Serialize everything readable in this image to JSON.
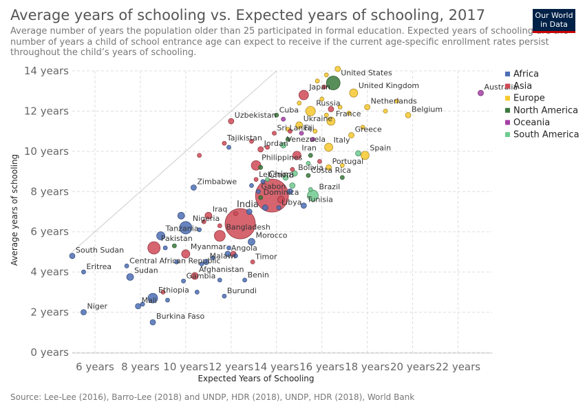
{
  "header": {
    "title": "Average years of schooling vs. Expected years of schooling, 2017",
    "subtitle": "Average number of years the population older than 25 participated in formal education. Expected years of schooling are the number of years a child of school entrance age can expect to receive if the current age-specific enrollment rates persist throughout the child’s years of schooling.",
    "logo_line1": "Our World",
    "logo_line2": "in Data"
  },
  "footer": {
    "source": "Source: Lee-Lee (2016), Barro-Lee (2018) and UNDP, HDR (2018), UNDP, HDR (2018), World Bank"
  },
  "colors": {
    "Africa": "#4c6fb5",
    "Asia": "#cf4a57",
    "Europe": "#f7c82e",
    "North America": "#3b7a3c",
    "Oceania": "#a53fa5",
    "South America": "#6fca8e"
  },
  "chart_data": {
    "type": "scatter",
    "title": "Average years of schooling vs. Expected years of schooling, 2017",
    "xlabel": "Expected Years of Schooling",
    "ylabel": "Average years of schooling",
    "xlim": [
      5,
      23.5
    ],
    "ylim": [
      0,
      14
    ],
    "xticks": [
      6,
      8,
      10,
      12,
      14,
      16,
      18,
      20,
      22
    ],
    "yticks": [
      0,
      2,
      4,
      6,
      8,
      10,
      12,
      14
    ],
    "xtick_labels": [
      "6 years",
      "8 years",
      "10 years",
      "12 years",
      "14 years",
      "16 years",
      "18 years",
      "20 years",
      "22 years"
    ],
    "ytick_labels": [
      "0 years",
      "2 years",
      "4 years",
      "6 years",
      "8 years",
      "10 years",
      "12 years",
      "14 years"
    ],
    "grid": true,
    "legend_position": "right",
    "legend": [
      "Africa",
      "Asia",
      "Europe",
      "North America",
      "Oceania",
      "South America"
    ],
    "reference_line": [
      [
        5,
        5
      ],
      [
        14,
        14
      ]
    ],
    "points": [
      {
        "name": "South Sudan",
        "x": 5.0,
        "y": 4.8,
        "region": "Africa",
        "size": 4
      },
      {
        "name": "Eritrea",
        "x": 5.5,
        "y": 4.0,
        "region": "Africa",
        "size": 3
      },
      {
        "name": "Niger",
        "x": 5.5,
        "y": 2.0,
        "region": "Africa",
        "size": 4
      },
      {
        "name": "Sudan",
        "x": 7.55,
        "y": 3.75,
        "region": "Africa",
        "size": 5
      },
      {
        "name": "Central African Republic",
        "x": 7.4,
        "y": 4.3,
        "region": "Africa",
        "size": 3
      },
      {
        "name": "Mali",
        "x": 7.9,
        "y": 2.3,
        "region": "Africa",
        "size": 4
      },
      {
        "name": "Burkina Faso",
        "x": 8.55,
        "y": 1.5,
        "region": "Africa",
        "size": 4
      },
      {
        "name": "Ethiopia",
        "x": 8.55,
        "y": 2.7,
        "region": "Africa",
        "size": 7
      },
      {
        "name": "Pakistan",
        "x": 8.6,
        "y": 5.2,
        "region": "Asia",
        "size": 9
      },
      {
        "name": "Tanzania",
        "x": 8.9,
        "y": 5.8,
        "region": "Africa",
        "size": 6
      },
      {
        "name": "Gambia",
        "x": 9.9,
        "y": 3.55,
        "region": "Africa",
        "size": 3
      },
      {
        "name": "Nigeria",
        "x": 10.0,
        "y": 6.2,
        "region": "Africa",
        "size": 9
      },
      {
        "name": "Zimbabwe",
        "x": 10.35,
        "y": 8.2,
        "region": "Africa",
        "size": 4
      },
      {
        "name": "Myanmar",
        "x": 10.0,
        "y": 4.9,
        "region": "Asia",
        "size": 6
      },
      {
        "name": "Afghanistan",
        "x": 10.4,
        "y": 3.8,
        "region": "Asia",
        "size": 5
      },
      {
        "name": "Malawi",
        "x": 10.9,
        "y": 4.5,
        "region": "Africa",
        "size": 4
      },
      {
        "name": "Iraq",
        "x": 11.0,
        "y": 6.8,
        "region": "Asia",
        "size": 5
      },
      {
        "name": "Bangladesh",
        "x": 11.5,
        "y": 5.8,
        "region": "Asia",
        "size": 8
      },
      {
        "name": "Burundi",
        "x": 11.7,
        "y": 2.8,
        "region": "Africa",
        "size": 3
      },
      {
        "name": "Angola",
        "x": 11.85,
        "y": 4.9,
        "region": "Africa",
        "size": 4
      },
      {
        "name": "Uzbekistan",
        "x": 12.0,
        "y": 11.5,
        "region": "Asia",
        "size": 4
      },
      {
        "name": "Tajikistan",
        "x": 11.7,
        "y": 10.4,
        "region": "Asia",
        "size": 3
      },
      {
        "name": "Philippines",
        "x": 13.1,
        "y": 9.3,
        "region": "Asia",
        "size": 7
      },
      {
        "name": "India",
        "x": 12.4,
        "y": 6.4,
        "region": "Asia",
        "size": 22
      },
      {
        "name": "Morocco",
        "x": 12.9,
        "y": 5.5,
        "region": "Africa",
        "size": 5
      },
      {
        "name": "Timor",
        "x": 12.95,
        "y": 4.5,
        "region": "Asia",
        "size": 3
      },
      {
        "name": "Benin",
        "x": 12.6,
        "y": 3.6,
        "region": "Africa",
        "size": 3
      },
      {
        "name": "Lebanon",
        "x": 13.1,
        "y": 8.6,
        "region": "Asia",
        "size": 3
      },
      {
        "name": "Gabon",
        "x": 13.2,
        "y": 8.0,
        "region": "Africa",
        "size": 3
      },
      {
        "name": "Dominica",
        "x": 13.3,
        "y": 7.7,
        "region": "North America",
        "size": 3
      },
      {
        "name": "China",
        "x": 13.8,
        "y": 7.8,
        "region": "Asia",
        "size": 24
      },
      {
        "name": "Libya",
        "x": 14.1,
        "y": 7.2,
        "region": "Africa",
        "size": 3
      },
      {
        "name": "Jordan",
        "x": 13.3,
        "y": 10.1,
        "region": "Asia",
        "size": 4
      },
      {
        "name": "Cuba",
        "x": 14.0,
        "y": 11.8,
        "region": "North America",
        "size": 3
      },
      {
        "name": "Sri Lanka",
        "x": 13.9,
        "y": 10.9,
        "region": "Asia",
        "size": 3
      },
      {
        "name": "Venezuela",
        "x": 14.3,
        "y": 10.3,
        "region": "South America",
        "size": 4
      },
      {
        "name": "Iran",
        "x": 14.9,
        "y": 9.8,
        "region": "Asia",
        "size": 6
      },
      {
        "name": "Bolivia",
        "x": 14.8,
        "y": 8.9,
        "region": "South America",
        "size": 4
      },
      {
        "name": "Tunisia",
        "x": 15.2,
        "y": 7.3,
        "region": "Africa",
        "size": 4
      },
      {
        "name": "Brazil",
        "x": 15.6,
        "y": 7.8,
        "region": "South America",
        "size": 8
      },
      {
        "name": "Costa Rica",
        "x": 15.4,
        "y": 8.8,
        "region": "North America",
        "size": 3
      },
      {
        "name": "Fiji",
        "x": 15.1,
        "y": 10.9,
        "region": "Oceania",
        "size": 3
      },
      {
        "name": "Ukraine",
        "x": 15.0,
        "y": 11.3,
        "region": "Europe",
        "size": 5
      },
      {
        "name": "Russia",
        "x": 15.5,
        "y": 12.0,
        "region": "Europe",
        "size": 7
      },
      {
        "name": "Japan",
        "x": 15.2,
        "y": 12.8,
        "region": "Asia",
        "size": 7
      },
      {
        "name": "United States",
        "x": 16.5,
        "y": 13.4,
        "region": "North America",
        "size": 10
      },
      {
        "name": "United Kingdom",
        "x": 17.4,
        "y": 12.9,
        "region": "Europe",
        "size": 6
      },
      {
        "name": "France",
        "x": 16.4,
        "y": 11.5,
        "region": "Europe",
        "size": 6
      },
      {
        "name": "Netherlands",
        "x": 18.0,
        "y": 12.2,
        "region": "Europe",
        "size": 4
      },
      {
        "name": "Belgium",
        "x": 19.8,
        "y": 11.8,
        "region": "Europe",
        "size": 4
      },
      {
        "name": "Greece",
        "x": 17.3,
        "y": 10.8,
        "region": "Europe",
        "size": 4
      },
      {
        "name": "Italy",
        "x": 16.3,
        "y": 10.2,
        "region": "Europe",
        "size": 6
      },
      {
        "name": "Spain",
        "x": 17.9,
        "y": 9.8,
        "region": "Europe",
        "size": 6
      },
      {
        "name": "Portugal",
        "x": 16.3,
        "y": 9.2,
        "region": "Europe",
        "size": 4
      },
      {
        "name": "Australia",
        "x": 23.0,
        "y": 12.9,
        "region": "Oceania",
        "size": 4
      },
      {
        "name": "",
        "x": 16.7,
        "y": 14.1,
        "region": "Europe",
        "size": 4
      },
      {
        "name": "",
        "x": 16.2,
        "y": 13.8,
        "region": "Europe",
        "size": 3
      },
      {
        "name": "",
        "x": 15.8,
        "y": 13.5,
        "region": "Europe",
        "size": 3
      },
      {
        "name": "",
        "x": 16.0,
        "y": 12.6,
        "region": "Europe",
        "size": 3
      },
      {
        "name": "",
        "x": 15.0,
        "y": 12.4,
        "region": "Europe",
        "size": 3
      },
      {
        "name": "",
        "x": 16.8,
        "y": 12.2,
        "region": "Europe",
        "size": 3
      },
      {
        "name": "",
        "x": 17.2,
        "y": 11.9,
        "region": "Europe",
        "size": 3
      },
      {
        "name": "",
        "x": 16.2,
        "y": 11.8,
        "region": "Europe",
        "size": 3
      },
      {
        "name": "",
        "x": 19.3,
        "y": 12.5,
        "region": "Europe",
        "size": 3
      },
      {
        "name": "",
        "x": 18.8,
        "y": 12.0,
        "region": "Europe",
        "size": 3
      },
      {
        "name": "",
        "x": 14.5,
        "y": 11.1,
        "region": "Europe",
        "size": 3
      },
      {
        "name": "",
        "x": 15.7,
        "y": 11.0,
        "region": "Europe",
        "size": 3
      },
      {
        "name": "",
        "x": 17.8,
        "y": 11.2,
        "region": "Europe",
        "size": 3
      },
      {
        "name": "",
        "x": 16.9,
        "y": 9.3,
        "region": "Europe",
        "size": 3
      },
      {
        "name": "",
        "x": 16.4,
        "y": 12.1,
        "region": "Asia",
        "size": 4
      },
      {
        "name": "",
        "x": 16.1,
        "y": 13.2,
        "region": "Asia",
        "size": 3
      },
      {
        "name": "",
        "x": 14.6,
        "y": 11.0,
        "region": "Asia",
        "size": 3
      },
      {
        "name": "",
        "x": 13.6,
        "y": 10.2,
        "region": "Asia",
        "size": 3
      },
      {
        "name": "",
        "x": 12.9,
        "y": 10.5,
        "region": "Asia",
        "size": 3
      },
      {
        "name": "",
        "x": 15.9,
        "y": 9.5,
        "region": "Asia",
        "size": 3
      },
      {
        "name": "",
        "x": 14.2,
        "y": 7.6,
        "region": "Asia",
        "size": 5
      },
      {
        "name": "",
        "x": 14.7,
        "y": 9.1,
        "region": "Asia",
        "size": 3
      },
      {
        "name": "",
        "x": 12.1,
        "y": 4.9,
        "region": "Asia",
        "size": 4
      },
      {
        "name": "",
        "x": 10.8,
        "y": 6.5,
        "region": "Asia",
        "size": 3
      },
      {
        "name": "",
        "x": 12.2,
        "y": 6.9,
        "region": "Asia",
        "size": 3
      },
      {
        "name": "",
        "x": 9.0,
        "y": 3.0,
        "region": "Asia",
        "size": 3
      },
      {
        "name": "",
        "x": 10.6,
        "y": 9.8,
        "region": "Asia",
        "size": 3
      },
      {
        "name": "",
        "x": 11.5,
        "y": 6.3,
        "region": "Asia",
        "size": 3
      },
      {
        "name": "",
        "x": 9.1,
        "y": 5.2,
        "region": "Africa",
        "size": 3
      },
      {
        "name": "",
        "x": 9.8,
        "y": 6.8,
        "region": "Africa",
        "size": 5
      },
      {
        "name": "",
        "x": 10.6,
        "y": 6.1,
        "region": "Africa",
        "size": 3
      },
      {
        "name": "",
        "x": 10.7,
        "y": 4.4,
        "region": "Africa",
        "size": 3
      },
      {
        "name": "",
        "x": 8.1,
        "y": 2.4,
        "region": "Africa",
        "size": 3
      },
      {
        "name": "",
        "x": 9.2,
        "y": 2.6,
        "region": "Africa",
        "size": 3
      },
      {
        "name": "",
        "x": 10.5,
        "y": 3.0,
        "region": "Africa",
        "size": 3
      },
      {
        "name": "",
        "x": 11.5,
        "y": 3.6,
        "region": "Africa",
        "size": 3
      },
      {
        "name": "",
        "x": 11.2,
        "y": 4.7,
        "region": "Africa",
        "size": 3
      },
      {
        "name": "",
        "x": 11.9,
        "y": 5.2,
        "region": "Africa",
        "size": 3
      },
      {
        "name": "",
        "x": 12.2,
        "y": 4.8,
        "region": "Africa",
        "size": 3
      },
      {
        "name": "",
        "x": 12.8,
        "y": 7.0,
        "region": "Africa",
        "size": 4
      },
      {
        "name": "",
        "x": 13.5,
        "y": 7.2,
        "region": "Africa",
        "size": 4
      },
      {
        "name": "",
        "x": 14.6,
        "y": 8.0,
        "region": "Africa",
        "size": 4
      },
      {
        "name": "",
        "x": 9.6,
        "y": 4.5,
        "region": "Africa",
        "size": 3
      },
      {
        "name": "",
        "x": 13.4,
        "y": 8.5,
        "region": "Africa",
        "size": 3
      },
      {
        "name": "",
        "x": 12.9,
        "y": 8.3,
        "region": "Africa",
        "size": 3
      },
      {
        "name": "",
        "x": 11.9,
        "y": 10.2,
        "region": "Africa",
        "size": 3
      },
      {
        "name": "",
        "x": 9.5,
        "y": 5.3,
        "region": "North America",
        "size": 3
      },
      {
        "name": "",
        "x": 13.3,
        "y": 9.2,
        "region": "North America",
        "size": 3
      },
      {
        "name": "",
        "x": 14.5,
        "y": 10.6,
        "region": "North America",
        "size": 3
      },
      {
        "name": "",
        "x": 15.5,
        "y": 9.8,
        "region": "North America",
        "size": 3
      },
      {
        "name": "",
        "x": 16.9,
        "y": 8.7,
        "region": "North America",
        "size": 3
      },
      {
        "name": "",
        "x": 13.6,
        "y": 8.6,
        "region": "South America",
        "size": 3
      },
      {
        "name": "",
        "x": 14.4,
        "y": 8.7,
        "region": "South America",
        "size": 4
      },
      {
        "name": "",
        "x": 14.7,
        "y": 8.3,
        "region": "South America",
        "size": 4
      },
      {
        "name": "",
        "x": 15.5,
        "y": 8.1,
        "region": "South America",
        "size": 3
      },
      {
        "name": "",
        "x": 17.6,
        "y": 9.9,
        "region": "South America",
        "size": 4
      },
      {
        "name": "",
        "x": 15.4,
        "y": 9.4,
        "region": "South America",
        "size": 3
      },
      {
        "name": "",
        "x": 14.3,
        "y": 11.6,
        "region": "Oceania",
        "size": 3
      },
      {
        "name": "",
        "x": 15.6,
        "y": 10.6,
        "region": "Oceania",
        "size": 3
      }
    ]
  }
}
